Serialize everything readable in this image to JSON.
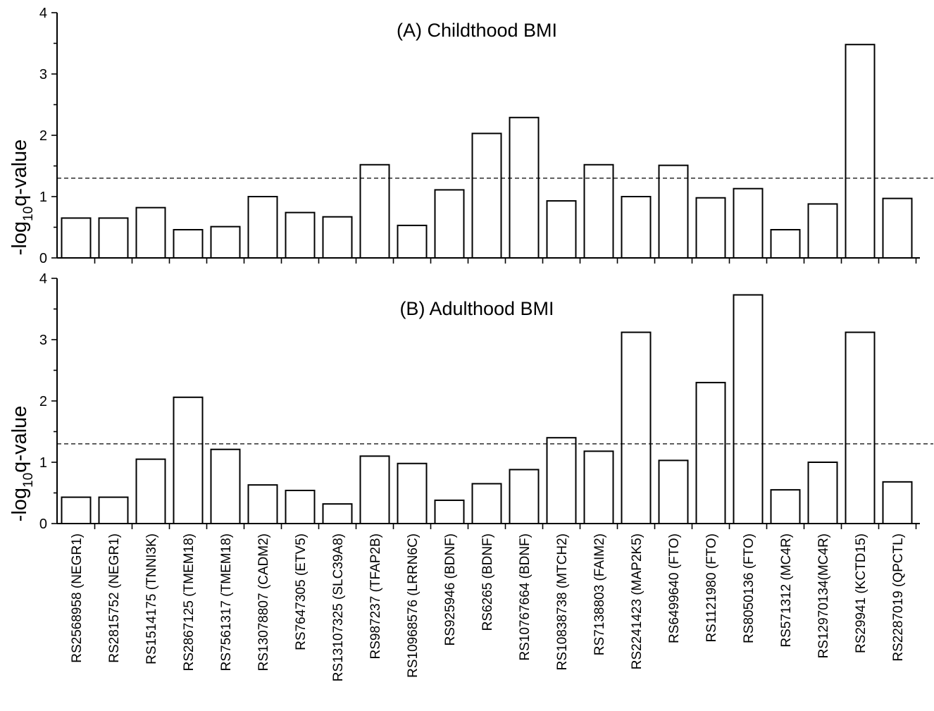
{
  "chart_data": [
    {
      "type": "bar",
      "title": "(A) Childthood BMI",
      "ylabel": {
        "prefix": "-log",
        "sub": "10",
        "suffix": "q-value"
      },
      "ylim": [
        0,
        4
      ],
      "yticks": [
        "0",
        "1",
        "2",
        "3",
        "4"
      ],
      "threshold": 1.3,
      "categories": [
        "RS2568958 (NEGR1)",
        "RS2815752 (NEGR1)",
        "RS1514175 (TNNI3K)",
        "RS2867125 (TMEM18)",
        "RS7561317 (TMEM18)",
        "RS13078807 (CADM2)",
        "RS7647305 (ETV5)",
        "RS13107325 (SLC39A8)",
        "RS987237 (TFAP2B)",
        "RS10968576 (LRRN6C)",
        "RS925946 (BDNF)",
        "RS6265 (BDNF)",
        "RS10767664 (BDNF)",
        "RS10838738 (MTCH2)",
        "RS7138803 (FAIM2)",
        "RS2241423 (MAP2K5)",
        "RS6499640 (FTO)",
        "RS1121980 (FTO)",
        "RS8050136 (FTO)",
        "RS571312 (MC4R)",
        "RS12970134(MC4R)",
        "RS29941 (KCTD15)",
        "RS2287019 (QPCTL)"
      ],
      "values": [
        0.65,
        0.65,
        0.82,
        0.46,
        0.51,
        1.0,
        0.74,
        0.67,
        1.52,
        0.53,
        1.11,
        2.03,
        2.29,
        0.93,
        1.52,
        1.0,
        1.51,
        0.98,
        1.13,
        0.46,
        0.88,
        3.48,
        0.97
      ]
    },
    {
      "type": "bar",
      "title": "(B) Adulthood BMI",
      "ylabel": {
        "prefix": "-log",
        "sub": "10",
        "suffix": "q-value"
      },
      "ylim": [
        0,
        4
      ],
      "yticks": [
        "0",
        "1",
        "2",
        "3",
        "4"
      ],
      "threshold": 1.3,
      "categories": [
        "RS2568958 (NEGR1)",
        "RS2815752 (NEGR1)",
        "RS1514175 (TNNI3K)",
        "RS2867125 (TMEM18)",
        "RS7561317 (TMEM18)",
        "RS13078807 (CADM2)",
        "RS7647305 (ETV5)",
        "RS13107325 (SLC39A8)",
        "RS987237 (TFAP2B)",
        "RS10968576 (LRRN6C)",
        "RS925946 (BDNF)",
        "RS6265 (BDNF)",
        "RS10767664 (BDNF)",
        "RS10838738 (MTCH2)",
        "RS7138803 (FAIM2)",
        "RS2241423 (MAP2K5)",
        "RS6499640 (FTO)",
        "RS1121980 (FTO)",
        "RS8050136 (FTO)",
        "RS571312 (MC4R)",
        "RS12970134(MC4R)",
        "RS29941 (KCTD15)",
        "RS2287019 (QPCTL)"
      ],
      "values": [
        0.43,
        0.43,
        1.05,
        2.06,
        1.21,
        0.63,
        0.54,
        0.32,
        1.1,
        0.98,
        0.38,
        0.65,
        0.88,
        1.4,
        1.18,
        3.12,
        1.03,
        2.3,
        3.73,
        0.55,
        1.0,
        3.12,
        0.68
      ]
    }
  ]
}
